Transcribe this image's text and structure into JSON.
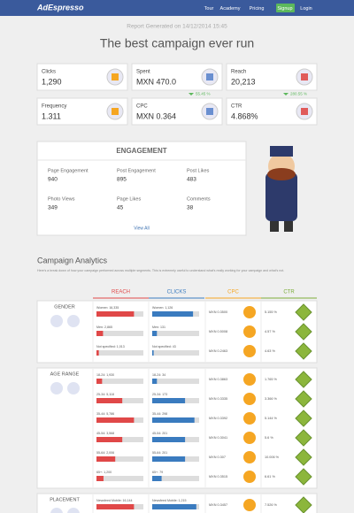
{
  "nav": {
    "brand": "AdEspresso",
    "links": [
      "Tour",
      "Academy",
      "Pricing",
      "Signup",
      "Login"
    ]
  },
  "report_date": "Report Generated on 14/12/2014 15:45",
  "title": "The best campaign ever run",
  "kpis": [
    {
      "label": "Clicks",
      "value": "1,290"
    },
    {
      "label": "Spent",
      "value": "MXN 470.0"
    },
    {
      "label": "Reach",
      "value": "20,213"
    },
    {
      "label": "Frequency",
      "value": "1.311"
    },
    {
      "label": "CPC",
      "value": "MXN 0.364",
      "change": "55.45 %"
    },
    {
      "label": "CTR",
      "value": "4.868%",
      "change": "280.55 %"
    }
  ],
  "engagement": {
    "title": "ENGAGEMENT",
    "stats": [
      {
        "label": "Page Engagement",
        "value": 940
      },
      {
        "label": "Post Engagement",
        "value": 895
      },
      {
        "label": "Post Likes",
        "value": 483
      },
      {
        "label": "Photo Views",
        "value": 349
      },
      {
        "label": "Page Likes",
        "value": 45
      },
      {
        "label": "Comments",
        "value": 38
      }
    ],
    "link": "View All"
  },
  "analytics": {
    "title": "Campaign Analytics",
    "intro": "Here's a break down of how your campaign performed across multiple segments. This is extremely useful to understand what's really working for your campaign and what's not.",
    "columns": [
      "REACH",
      "CLICKS",
      "CPC",
      "CTR"
    ],
    "sections": [
      {
        "label": "GENDER",
        "rows": [
          {
            "reach": "Women: 16,335",
            "reach_share": 80,
            "clicks": "Women: 1,126",
            "clicks_share": 87,
            "cpc": "MXN 0.3500",
            "ctr": "5.155 %"
          },
          {
            "reach": "Men: 2,865",
            "reach_share": 14,
            "clicks": "Men: 131",
            "clicks_share": 10,
            "cpc": "MXN 0.5008",
            "ctr": "4.57 %"
          },
          {
            "reach": "Not specified: 1,013",
            "reach_share": 5,
            "clicks": "Not specified: 43",
            "clicks_share": 3,
            "cpc": "MXN 0.2463",
            "ctr": "4.63 %"
          }
        ]
      },
      {
        "label": "AGE RANGE",
        "rows": [
          {
            "reach": "18-24: 1,930",
            "reach_share": 12,
            "clicks": "18-24: 34",
            "clicks_share": 10,
            "cpc": "MXN 0.3863",
            "ctr": "1.765 %"
          },
          {
            "reach": "25-34: 5,118",
            "reach_share": 55,
            "clicks": "25-34: 173",
            "clicks_share": 70,
            "cpc": "MXN 0.3335",
            "ctr": "3.366 %"
          },
          {
            "reach": "35-44: 5,786",
            "reach_share": 80,
            "clicks": "35-44: 298",
            "clicks_share": 90,
            "cpc": "MXN 0.3392",
            "ctr": "5.144 %"
          },
          {
            "reach": "45-54: 3,568",
            "reach_share": 55,
            "clicks": "45-54: 201",
            "clicks_share": 70,
            "cpc": "MXN 0.3041",
            "ctr": "5.6 %"
          },
          {
            "reach": "55-64: 2,006",
            "reach_share": 40,
            "clicks": "55-64: 201",
            "clicks_share": 70,
            "cpc": "MXN 0.307",
            "ctr": "10.006 %"
          },
          {
            "reach": "65+: 1,200",
            "reach_share": 15,
            "clicks": "65+: 79",
            "clicks_share": 20,
            "cpc": "MXN 0.3515",
            "ctr": "6.61 %"
          }
        ]
      },
      {
        "label": "PLACEMENT",
        "rows": [
          {
            "reach": "Newsfeed Mobile: 16,144",
            "reach_share": 80,
            "clicks": "Newsfeed Mobile: 1,215",
            "clicks_share": 94,
            "cpc": "MXN 0.3457",
            "ctr": "7.526 %"
          }
        ]
      }
    ]
  }
}
